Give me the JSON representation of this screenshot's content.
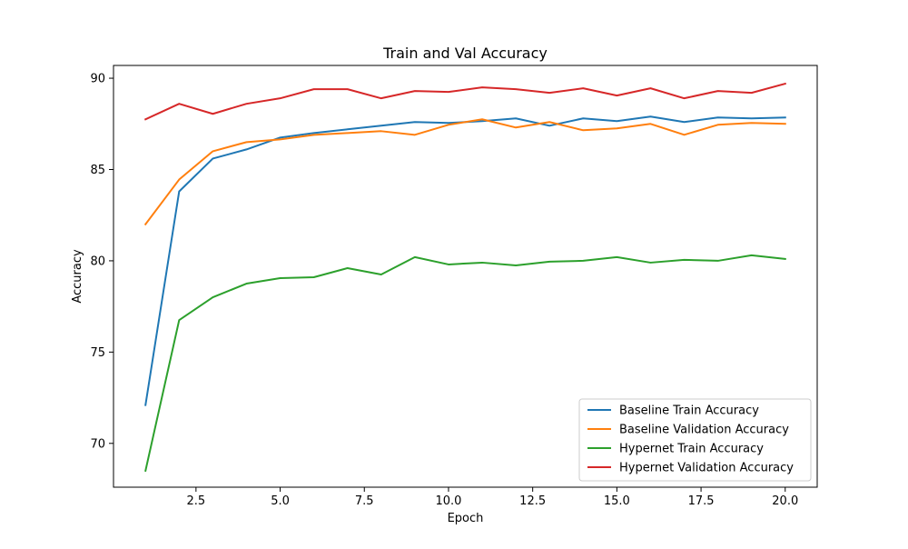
{
  "chart_data": {
    "type": "line",
    "title": "Train and Val Accuracy",
    "xlabel": "Epoch",
    "ylabel": "Accuracy",
    "xlim": [
      0.05,
      20.95
    ],
    "ylim": [
      67.6,
      90.7
    ],
    "xticks": [
      2.5,
      5.0,
      7.5,
      10.0,
      12.5,
      15.0,
      17.5,
      20.0
    ],
    "xtick_labels": [
      "2.5",
      "5.0",
      "7.5",
      "10.0",
      "12.5",
      "15.0",
      "17.5",
      "20.0"
    ],
    "yticks": [
      70,
      75,
      80,
      85,
      90
    ],
    "ytick_labels": [
      "70",
      "75",
      "80",
      "85",
      "90"
    ],
    "grid": false,
    "legend_position": "lower-right",
    "x": [
      1,
      2,
      3,
      4,
      5,
      6,
      7,
      8,
      9,
      10,
      11,
      12,
      13,
      14,
      15,
      16,
      17,
      18,
      19,
      20
    ],
    "series": [
      {
        "name": "Baseline Train Accuracy",
        "color": "#1f77b4",
        "values": [
          72.1,
          83.8,
          85.6,
          86.1,
          86.75,
          87.0,
          87.2,
          87.4,
          87.6,
          87.55,
          87.65,
          87.8,
          87.4,
          87.8,
          87.65,
          87.9,
          87.6,
          87.85,
          87.8,
          87.85
        ]
      },
      {
        "name": "Baseline Validation Accuracy",
        "color": "#ff7f0e",
        "values": [
          82.0,
          84.45,
          86.0,
          86.5,
          86.65,
          86.9,
          87.0,
          87.1,
          86.9,
          87.45,
          87.75,
          87.3,
          87.6,
          87.15,
          87.25,
          87.5,
          86.9,
          87.45,
          87.55,
          87.5
        ]
      },
      {
        "name": "Hypernet Train Accuracy",
        "color": "#2ca02c",
        "values": [
          68.5,
          76.75,
          78.0,
          78.75,
          79.05,
          79.1,
          79.6,
          79.25,
          80.2,
          79.8,
          79.9,
          79.75,
          79.95,
          80.0,
          80.2,
          79.9,
          80.05,
          80.0,
          80.3,
          80.1
        ]
      },
      {
        "name": "Hypernet Validation Accuracy",
        "color": "#d62728",
        "values": [
          87.75,
          88.6,
          88.05,
          88.6,
          88.9,
          89.4,
          89.4,
          88.9,
          89.3,
          89.25,
          89.5,
          89.4,
          89.2,
          89.45,
          89.05,
          89.45,
          88.9,
          89.3,
          89.2,
          89.7
        ]
      }
    ]
  }
}
